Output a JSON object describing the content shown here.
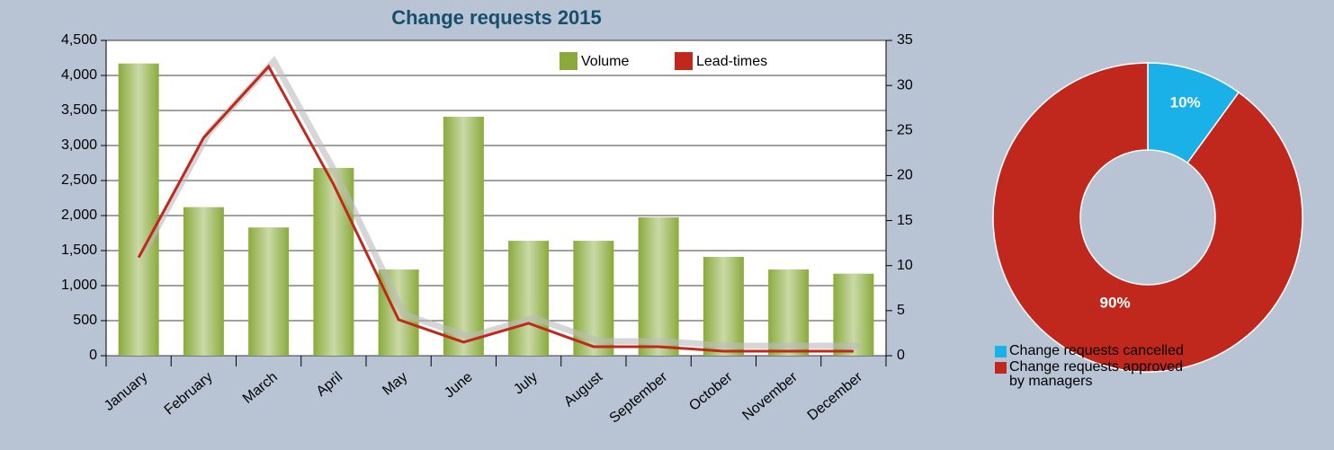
{
  "chart_data": [
    {
      "type": "bar",
      "title": "Change requests 2015",
      "categories": [
        "January",
        "February",
        "March",
        "April",
        "May",
        "June",
        "July",
        "August",
        "September",
        "October",
        "November",
        "December"
      ],
      "series": [
        {
          "name": "Volume",
          "type": "bar",
          "color": "#8aab3c",
          "values": [
            4170,
            2120,
            1830,
            2680,
            1230,
            3410,
            1640,
            1640,
            1975,
            1410,
            1230,
            1170
          ]
        },
        {
          "name": "Lead-times",
          "type": "line",
          "axis": "y2",
          "color": "#c0281e",
          "values": [
            10.9,
            24.2,
            32.1,
            19,
            4,
            1.5,
            3.6,
            1,
            1,
            0.5,
            0.5,
            0.5
          ]
        }
      ],
      "ylim": [
        0,
        4500
      ],
      "yticks": [
        0,
        500,
        {
          "value": 1000,
          "label": "1,000"
        },
        {
          "value": 1500,
          "label": "1,500"
        },
        {
          "value": 2000,
          "label": "2,000"
        },
        {
          "value": 2500,
          "label": "2,500"
        },
        {
          "value": 3000,
          "label": "3,000"
        },
        {
          "value": 3500,
          "label": "3,500"
        },
        {
          "value": 4000,
          "label": "4,000"
        },
        {
          "value": 4500,
          "label": "4,500"
        }
      ],
      "y2lim": [
        0,
        35
      ],
      "y2ticks": [
        0,
        5,
        10,
        15,
        20,
        25,
        30,
        35
      ],
      "grid": true,
      "legend": "top-right"
    },
    {
      "type": "pie",
      "categories": [
        "Change requests cancelled",
        "Change requests approved by managers"
      ],
      "values": [
        10,
        90
      ],
      "value_labels": [
        "10%",
        "90%"
      ],
      "colors": [
        "#1ab0e8",
        "#c0281e"
      ],
      "donut": true
    }
  ]
}
